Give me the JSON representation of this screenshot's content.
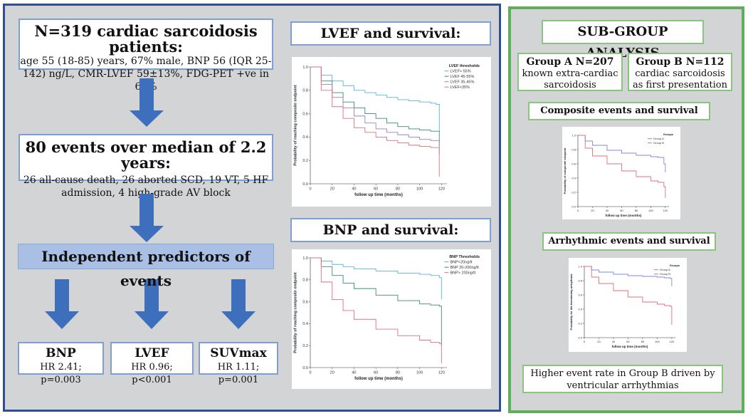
{
  "left": {
    "summary": {
      "title": "N=319 cardiac sarcoidosis patients:",
      "text": "age 55 (18-85) years, 67% male, BNP 56 (IQR 25-142) ng/L, CMR-LVEF 59±13%, FDG-PET +ve in 64%"
    },
    "events": {
      "title": "80 events over median of 2.2 years:",
      "text": "26 all-cause death, 26 aborted SCD, 19 VT, 5 HF admission, 4 high-grade AV block"
    },
    "predictors_title": "Independent predictors of events",
    "predictors": [
      {
        "name": "BNP",
        "stat": "HR 2.41; p=0.003"
      },
      {
        "name": "LVEF",
        "stat": "HR 0.96; p<0.001"
      },
      {
        "name": "SUVmax",
        "stat": "HR 1.11; p=0.001"
      }
    ],
    "lvef_title": "LVEF and survival:",
    "bnp_title": "BNP and survival:"
  },
  "right": {
    "title": "SUB-GROUP ANALYSIS",
    "group_a": {
      "title": "Group A N=207",
      "text": "known extra-cardiac sarcoidosis"
    },
    "group_b": {
      "title": "Group B N=112",
      "text": "cardiac sarcoidosis as first presentation"
    },
    "composite_title": "Composite events and survival",
    "arrhythmic_title": "Arrhythmic events and survival",
    "conclusion": "Higher event rate in Group B driven by ventricular arrhythmias"
  },
  "colors": {
    "left_border": "#2e4f96",
    "right_border": "#5fae5a",
    "arrow": "#3e6fbd",
    "pred_bar": "#a9bfe3"
  },
  "chart_data": [
    {
      "type": "line",
      "title": "LVEF thresholds",
      "xlabel": "follow up time (months)",
      "ylabel": "Probability of reaching composite endpoint",
      "xticks": [
        "0",
        "20",
        "40",
        "60",
        "80",
        "100",
        "120"
      ],
      "yticks": [
        "0.0",
        "0.2",
        "0.4",
        "0.6",
        "0.8",
        "1.0"
      ],
      "xlim": [
        0,
        125
      ],
      "ylim": [
        0,
        1
      ],
      "series": [
        {
          "name": "LVEF> 55%",
          "color": "#5bb3d8",
          "x": [
            0,
            10,
            20,
            30,
            40,
            50,
            60,
            70,
            80,
            90,
            100,
            110,
            115,
            118
          ],
          "y": [
            1.0,
            0.93,
            0.88,
            0.84,
            0.8,
            0.78,
            0.76,
            0.74,
            0.72,
            0.71,
            0.7,
            0.69,
            0.68,
            0.45
          ]
        },
        {
          "name": "LVEF 45-55%",
          "color": "#3a8a7a",
          "x": [
            0,
            10,
            20,
            30,
            40,
            50,
            60,
            70,
            80,
            90,
            100,
            110,
            118
          ],
          "y": [
            1.0,
            0.88,
            0.78,
            0.7,
            0.65,
            0.6,
            0.56,
            0.52,
            0.49,
            0.47,
            0.46,
            0.45,
            0.32
          ]
        },
        {
          "name": "LVEF 35-45%",
          "color": "#a27fb5",
          "x": [
            0,
            10,
            20,
            30,
            40,
            50,
            60,
            70,
            80,
            90,
            100,
            110,
            118
          ],
          "y": [
            1.0,
            0.85,
            0.74,
            0.65,
            0.58,
            0.52,
            0.47,
            0.44,
            0.42,
            0.4,
            0.38,
            0.37,
            0.25
          ]
        },
        {
          "name": "LVEF<35%",
          "color": "#e0707a",
          "x": [
            0,
            10,
            20,
            30,
            40,
            50,
            60,
            70,
            80,
            90,
            100,
            110,
            118
          ],
          "y": [
            1.0,
            0.8,
            0.66,
            0.56,
            0.48,
            0.44,
            0.4,
            0.37,
            0.35,
            0.33,
            0.32,
            0.31,
            0.06
          ]
        }
      ]
    },
    {
      "type": "line",
      "title": "BNP Thresholds",
      "xlabel": "follow up time (months)",
      "ylabel": "Probability of reaching composite endpoint",
      "xticks": [
        "0",
        "20",
        "40",
        "60",
        "80",
        "100",
        "120"
      ],
      "yticks": [
        "0.0",
        "0.2",
        "0.4",
        "0.6",
        "0.8",
        "1.0"
      ],
      "xlim": [
        0,
        125
      ],
      "ylim": [
        0,
        1
      ],
      "series": [
        {
          "name": "BNP<20ng/lt",
          "color": "#5bb3d8",
          "x": [
            0,
            10,
            20,
            30,
            40,
            60,
            80,
            100,
            110,
            118,
            120
          ],
          "y": [
            1.0,
            0.97,
            0.94,
            0.92,
            0.9,
            0.88,
            0.86,
            0.85,
            0.84,
            0.82,
            0.62
          ]
        },
        {
          "name": "BNP 20-200ng/lt",
          "color": "#3a8a7a",
          "x": [
            0,
            10,
            20,
            30,
            40,
            60,
            80,
            100,
            110,
            118,
            120
          ],
          "y": [
            1.0,
            0.92,
            0.84,
            0.77,
            0.72,
            0.66,
            0.61,
            0.58,
            0.57,
            0.56,
            0.2
          ]
        },
        {
          "name": "BNP> 200ng/lt",
          "color": "#e0707a",
          "x": [
            0,
            10,
            20,
            30,
            40,
            60,
            80,
            100,
            110,
            118,
            120
          ],
          "y": [
            1.0,
            0.78,
            0.62,
            0.52,
            0.44,
            0.35,
            0.29,
            0.25,
            0.23,
            0.22,
            0.04
          ]
        }
      ]
    },
    {
      "type": "line",
      "title": "Groups",
      "xlabel": "follow up time (months)",
      "ylabel": "Probability of composite endpoint",
      "xticks": [
        "0",
        "20",
        "40",
        "60",
        "80",
        "100",
        "120"
      ],
      "yticks": [
        "0.0",
        "0.2",
        "0.4",
        "0.6",
        "0.8",
        "1.0"
      ],
      "xlim": [
        0,
        125
      ],
      "ylim": [
        0,
        1
      ],
      "series": [
        {
          "name": "Group A",
          "color": "#7f8ad8",
          "x": [
            0,
            10,
            20,
            40,
            60,
            80,
            100,
            110,
            118,
            120
          ],
          "y": [
            1.0,
            0.92,
            0.86,
            0.79,
            0.75,
            0.72,
            0.7,
            0.69,
            0.6,
            0.48
          ]
        },
        {
          "name": "Group B",
          "color": "#e0707a",
          "x": [
            0,
            10,
            20,
            40,
            60,
            80,
            100,
            110,
            118,
            120
          ],
          "y": [
            1.0,
            0.82,
            0.71,
            0.6,
            0.5,
            0.42,
            0.36,
            0.34,
            0.28,
            0.12
          ]
        }
      ]
    },
    {
      "type": "line",
      "title": "Groups",
      "xlabel": "follow up time (months)",
      "ylabel": "Probability for life-threatening arrhythmia",
      "xticks": [
        "0",
        "20",
        "40",
        "60",
        "80",
        "100",
        "120"
      ],
      "yticks": [
        "0.0",
        "0.2",
        "0.4",
        "0.6",
        "0.8",
        "1.0"
      ],
      "xlim": [
        0,
        125
      ],
      "ylim": [
        0,
        1
      ],
      "series": [
        {
          "name": "Group A",
          "color": "#7f8ad8",
          "x": [
            0,
            10,
            20,
            40,
            60,
            80,
            100,
            110,
            118,
            120
          ],
          "y": [
            1.0,
            0.95,
            0.92,
            0.89,
            0.87,
            0.86,
            0.85,
            0.84,
            0.83,
            0.72
          ]
        },
        {
          "name": "Group B",
          "color": "#e0707a",
          "x": [
            0,
            10,
            20,
            40,
            60,
            80,
            100,
            110,
            118,
            120
          ],
          "y": [
            1.0,
            0.85,
            0.76,
            0.66,
            0.57,
            0.5,
            0.47,
            0.45,
            0.44,
            0.18
          ]
        }
      ]
    }
  ]
}
